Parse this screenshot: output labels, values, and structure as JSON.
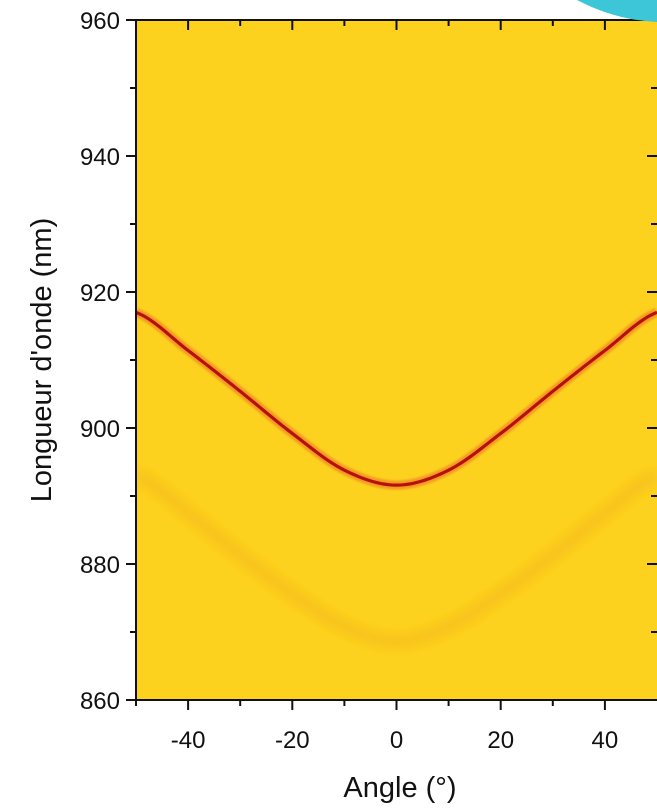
{
  "chart_data": {
    "type": "heatmap",
    "title": "",
    "xlabel": "Angle (°)",
    "ylabel": "Longueur d'onde (nm)",
    "xlim": [
      -50,
      50
    ],
    "ylim": [
      860,
      960
    ],
    "x_ticks": [
      -40,
      -20,
      0,
      20,
      40
    ],
    "y_ticks": [
      860,
      880,
      900,
      920,
      940,
      960
    ],
    "grid": false,
    "colors": {
      "background": "#fdd21e",
      "strong_mode": "#b8100e",
      "weak_mode": "#f1b419"
    },
    "modes": [
      {
        "name": "",
        "strength": "strong",
        "x": [
          -50,
          -40,
          -30,
          -20,
          -10,
          0,
          10,
          20,
          30,
          40,
          50
        ],
        "y": [
          917,
          911.4,
          905.4,
          899.2,
          893.8,
          891.6,
          893.8,
          899.2,
          905.4,
          911.4,
          917
        ]
      },
      {
        "name": "",
        "strength": "weak",
        "x": [
          -50,
          -40,
          -30,
          -20,
          -10,
          0,
          10,
          20,
          30,
          40,
          50
        ],
        "y": [
          893,
          887.5,
          881.3,
          875.6,
          870.8,
          868.6,
          870.8,
          875.6,
          881.3,
          887.5,
          893
        ]
      }
    ]
  }
}
